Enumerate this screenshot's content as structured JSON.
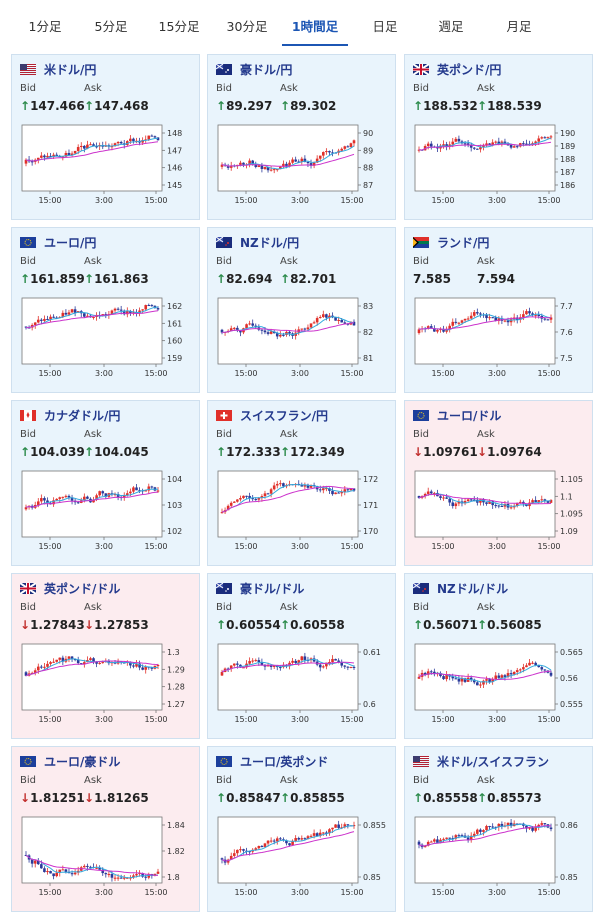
{
  "tabs": [
    "1分足",
    "5分足",
    "15分足",
    "30分足",
    "1時間足",
    "日足",
    "週足",
    "月足"
  ],
  "active_tab": "1時間足",
  "labels": {
    "bid": "Bid",
    "ask": "Ask"
  },
  "cards": [
    {
      "name": "米ドル/円",
      "flag": "us",
      "bid": "147.466",
      "ask": "147.468",
      "dir": "up",
      "yticks": [
        "148",
        "147",
        "146",
        "145"
      ],
      "xticks": [
        "15:00",
        "3:00",
        "15:00"
      ]
    },
    {
      "name": "豪ドル/円",
      "flag": "au",
      "bid": "89.297",
      "ask": "89.302",
      "dir": "up",
      "yticks": [
        "90",
        "89",
        "88",
        "87"
      ],
      "xticks": [
        "15:00",
        "3:00",
        "15:00"
      ]
    },
    {
      "name": "英ポンド/円",
      "flag": "gb",
      "bid": "188.532",
      "ask": "188.539",
      "dir": "up",
      "yticks": [
        "190",
        "189",
        "188",
        "187",
        "186"
      ],
      "xticks": [
        "15:00",
        "3:00",
        "15:00"
      ]
    },
    {
      "name": "ユーロ/円",
      "flag": "eu",
      "bid": "161.859",
      "ask": "161.863",
      "dir": "up",
      "yticks": [
        "162",
        "161",
        "160",
        "159"
      ],
      "xticks": [
        "15:00",
        "3:00",
        "15:00"
      ]
    },
    {
      "name": "NZドル/円",
      "flag": "nz",
      "bid": "82.694",
      "ask": "82.701",
      "dir": "up",
      "yticks": [
        "83",
        "82",
        "81"
      ],
      "xticks": [
        "15:00",
        "3:00",
        "15:00"
      ]
    },
    {
      "name": "ランド/円",
      "flag": "za",
      "bid": "7.585",
      "ask": "7.594",
      "dir": "none",
      "yticks": [
        "7.7",
        "7.6",
        "7.5"
      ],
      "xticks": [
        "15:00",
        "3:00",
        "15:00"
      ]
    },
    {
      "name": "カナダドル/円",
      "flag": "ca",
      "bid": "104.039",
      "ask": "104.045",
      "dir": "up",
      "yticks": [
        "104",
        "103",
        "102"
      ],
      "xticks": [
        "15:00",
        "3:00",
        "15:00"
      ]
    },
    {
      "name": "スイスフラン/円",
      "flag": "ch",
      "bid": "172.333",
      "ask": "172.349",
      "dir": "up",
      "yticks": [
        "172",
        "171",
        "170"
      ],
      "xticks": [
        "15:00",
        "3:00",
        "15:00"
      ]
    },
    {
      "name": "ユーロ/ドル",
      "flag": "euus",
      "bid": "1.09761",
      "ask": "1.09764",
      "dir": "down",
      "yticks": [
        "1.105",
        "1.1",
        "1.095",
        "1.09"
      ],
      "xticks": [
        "15:00",
        "3:00",
        "15:00"
      ]
    },
    {
      "name": "英ポンド/ドル",
      "flag": "gbus",
      "bid": "1.27843",
      "ask": "1.27853",
      "dir": "down",
      "yticks": [
        "1.3",
        "1.29",
        "1.28",
        "1.27"
      ],
      "xticks": [
        "15:00",
        "3:00",
        "15:00"
      ]
    },
    {
      "name": "豪ドル/ドル",
      "flag": "auus",
      "bid": "0.60554",
      "ask": "0.60558",
      "dir": "up",
      "yticks": [
        "0.61",
        "0.6"
      ],
      "xticks": [
        "15:00",
        "3:00",
        "15:00"
      ]
    },
    {
      "name": "NZドル/ドル",
      "flag": "nzus",
      "bid": "0.56071",
      "ask": "0.56085",
      "dir": "up",
      "yticks": [
        "0.565",
        "0.56",
        "0.555"
      ],
      "xticks": [
        "15:00",
        "3:00",
        "15:00"
      ]
    },
    {
      "name": "ユーロ/豪ドル",
      "flag": "euau",
      "bid": "1.81251",
      "ask": "1.81265",
      "dir": "down",
      "yticks": [
        "1.84",
        "1.82",
        "1.8"
      ],
      "xticks": [
        "15:00",
        "3:00",
        "15:00"
      ]
    },
    {
      "name": "ユーロ/英ポンド",
      "flag": "eugb",
      "bid": "0.85847",
      "ask": "0.85855",
      "dir": "up",
      "yticks": [
        "0.855",
        "0.85"
      ],
      "xticks": [
        "15:00",
        "3:00",
        "15:00"
      ]
    },
    {
      "name": "米ドル/スイスフラン",
      "flag": "usch",
      "bid": "0.85558",
      "ask": "0.85573",
      "dir": "up",
      "yticks": [
        "0.86",
        "0.85"
      ],
      "xticks": [
        "15:00",
        "3:00",
        "15:00"
      ]
    }
  ],
  "colors": {
    "up_candle": "#e0302a",
    "down_candle": "#2a3a9a",
    "ma_long": "#cc33cc",
    "ma_short": "#33aadd",
    "card_up_bg": "#e9f4fc",
    "card_down_bg": "#fcecef",
    "title": "#243a8d",
    "tab_active": "#1c56b4"
  }
}
